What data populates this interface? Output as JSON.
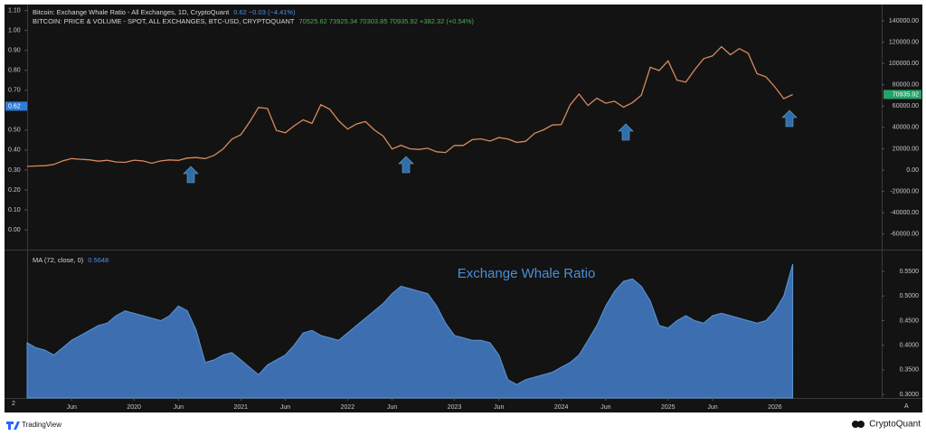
{
  "chart_data": [
    {
      "type": "line",
      "title": "Bitcoin: Exchange Whale Ratio - All Exchanges, 1D, CryptoQuant",
      "title_values": "0.62 −0.03 (−4.41%)",
      "subtitle": "BITCOIN: PRICE & VOLUME - SPOT, ALL EXCHANGES, BTC-USD, CRYPTOQUANT",
      "subtitle_values": "70525.62 73925.34 70303.85 70935.92 +382.32 (+0.54%)",
      "xlim": [
        0,
        96
      ],
      "ylim": [
        -0.095,
        1.13
      ],
      "yticks": [
        {
          "value": 1.1,
          "label": "1.10"
        },
        {
          "value": 1.0,
          "label": "1.00"
        },
        {
          "value": 0.9,
          "label": "0.90"
        },
        {
          "value": 0.8,
          "label": "0.80"
        },
        {
          "value": 0.7,
          "label": "0.70"
        },
        {
          "value": 0.5,
          "label": "0.50"
        },
        {
          "value": 0.4,
          "label": "0.40"
        },
        {
          "value": 0.3,
          "label": "0.30"
        },
        {
          "value": 0.2,
          "label": "0.20"
        },
        {
          "value": 0.1,
          "label": "0.10"
        },
        {
          "value": 0,
          "label": "0.00"
        }
      ],
      "current_value": 0.62,
      "y2lim": [
        -73800,
        155300
      ],
      "y2ticks": [
        {
          "value": 140000,
          "label": "140000.00"
        },
        {
          "value": 120000,
          "label": "120000.00"
        },
        {
          "value": 100000,
          "label": "100000.00"
        },
        {
          "value": 80000,
          "label": "80000.00"
        },
        {
          "value": 60000,
          "label": "60000.00"
        },
        {
          "value": 40000,
          "label": "40000.00"
        },
        {
          "value": 20000,
          "label": "20000.00"
        },
        {
          "value": 0,
          "label": "0.00"
        },
        {
          "value": -20000,
          "label": "-20000.00"
        },
        {
          "value": -40000,
          "label": "-40000.00"
        },
        {
          "value": -60000,
          "label": "-60000.00"
        }
      ],
      "current_price": 70935.92,
      "series": [
        {
          "name": "BITCOIN: PRICE",
          "color": "#d68a5c",
          "axis": "y2",
          "values": [
            3500,
            3800,
            4100,
            5300,
            8600,
            10800,
            10100,
            9600,
            8300,
            9200,
            7600,
            7200,
            9300,
            8600,
            6400,
            8600,
            9500,
            9100,
            11300,
            11700,
            10800,
            13800,
            19700,
            29000,
            33100,
            45200,
            58800,
            57700,
            37300,
            35000,
            41500,
            47100,
            43800,
            61300,
            57000,
            46300,
            38500,
            43200,
            45500,
            37700,
            31800,
            19800,
            23300,
            20000,
            19400,
            20500,
            17200,
            16500,
            23100,
            23100,
            28500,
            29300,
            27200,
            30500,
            29200,
            26000,
            27000,
            34500,
            37700,
            42300,
            42600,
            61200,
            71300,
            60600,
            67500,
            62700,
            64600,
            59000,
            63300,
            70200,
            96400,
            93400,
            102400,
            84400,
            82500,
            94200,
            104600,
            107100,
            115800,
            108200,
            114000,
            109600,
            90400,
            87500,
            78000,
            67000,
            70900
          ]
        }
      ]
    },
    {
      "type": "area",
      "indicator_label": "MA (72, close, 0)",
      "indicator_value": 0.5648,
      "annotation": "Exchange Whale Ratio",
      "xlim": [
        0,
        96
      ],
      "y2lim": [
        0.2926,
        0.5907
      ],
      "y2ticks": [
        {
          "value": 0.55,
          "label": "0.5500"
        },
        {
          "value": 0.5,
          "label": "0.5000"
        },
        {
          "value": 0.45,
          "label": "0.4500"
        },
        {
          "value": 0.4,
          "label": "0.4000"
        },
        {
          "value": 0.35,
          "label": "0.3500"
        },
        {
          "value": 0.3,
          "label": "0.3000"
        }
      ],
      "xticks": [
        {
          "value": 5,
          "label": "Jun"
        },
        {
          "value": 12,
          "label": "2020"
        },
        {
          "value": 17,
          "label": "Jun"
        },
        {
          "value": 24,
          "label": "2021"
        },
        {
          "value": 29,
          "label": "Jun"
        },
        {
          "value": 36,
          "label": "2022"
        },
        {
          "value": 41,
          "label": "Jun"
        },
        {
          "value": 48,
          "label": "2023"
        },
        {
          "value": 53,
          "label": "Jun"
        },
        {
          "value": 60,
          "label": "2024"
        },
        {
          "value": 65,
          "label": "Jun"
        },
        {
          "value": 72,
          "label": "2025"
        },
        {
          "value": 77,
          "label": "Jun"
        },
        {
          "value": 84,
          "label": "2026"
        }
      ],
      "series": [
        {
          "name": "MA",
          "color": "#3d6fb0",
          "axis": "y2",
          "values": [
            0.405,
            0.395,
            0.39,
            0.38,
            0.395,
            0.41,
            0.42,
            0.43,
            0.44,
            0.445,
            0.46,
            0.47,
            0.465,
            0.46,
            0.455,
            0.45,
            0.46,
            0.48,
            0.47,
            0.43,
            0.365,
            0.37,
            0.38,
            0.385,
            0.37,
            0.355,
            0.34,
            0.36,
            0.37,
            0.38,
            0.4,
            0.425,
            0.43,
            0.42,
            0.415,
            0.41,
            0.425,
            0.44,
            0.455,
            0.47,
            0.485,
            0.505,
            0.52,
            0.515,
            0.51,
            0.505,
            0.48,
            0.445,
            0.42,
            0.415,
            0.41,
            0.41,
            0.405,
            0.38,
            0.33,
            0.32,
            0.33,
            0.335,
            0.34,
            0.345,
            0.355,
            0.365,
            0.38,
            0.41,
            0.44,
            0.48,
            0.51,
            0.53,
            0.535,
            0.52,
            0.49,
            0.44,
            0.435,
            0.45,
            0.46,
            0.45,
            0.445,
            0.46,
            0.465,
            0.46,
            0.455,
            0.45,
            0.445,
            0.45,
            0.47,
            0.5,
            0.565
          ]
        }
      ]
    }
  ],
  "footer": {
    "left": "TradingView",
    "right": "CryptoQuant"
  }
}
